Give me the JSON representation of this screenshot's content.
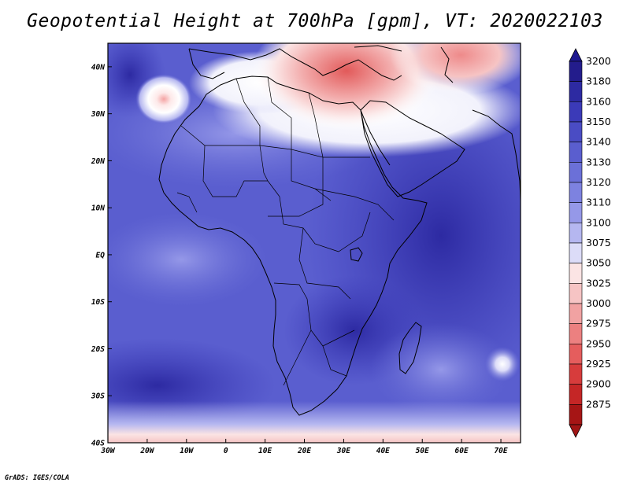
{
  "title": "Geopotential Height at 700hPa [gpm], VT: 2020022103",
  "credit": "GrADS: IGES/COLA",
  "map": {
    "lat_labels": [
      "40N",
      "30N",
      "20N",
      "10N",
      "EQ",
      "10S",
      "20S",
      "30S",
      "40S"
    ],
    "lon_labels": [
      "30W",
      "20W",
      "10W",
      "0",
      "10E",
      "20E",
      "30E",
      "40E",
      "50E",
      "60E",
      "70E"
    ],
    "extent": {
      "lon_min": -30,
      "lon_max": 75,
      "lat_min": -40,
      "lat_max": 45
    }
  },
  "colorbar": {
    "levels": [
      3200,
      3180,
      3160,
      3150,
      3140,
      3130,
      3120,
      3110,
      3100,
      3075,
      3050,
      3025,
      3000,
      2975,
      2950,
      2925,
      2900,
      2875
    ],
    "colors": [
      "#231c8c",
      "#2d2aa2",
      "#3b3ab8",
      "#4a4cc4",
      "#5a5ecf",
      "#6b70d8",
      "#7d82e0",
      "#9598e8",
      "#b5b7f0",
      "#dcdcf8",
      "#fbe4e4",
      "#f6c4c4",
      "#f1a2a2",
      "#ec8080",
      "#e55d5d",
      "#d73c3c",
      "#c52626",
      "#a61515"
    ],
    "top_arrow_color": "#1e1890",
    "bottom_arrow_color": "#a01515"
  }
}
